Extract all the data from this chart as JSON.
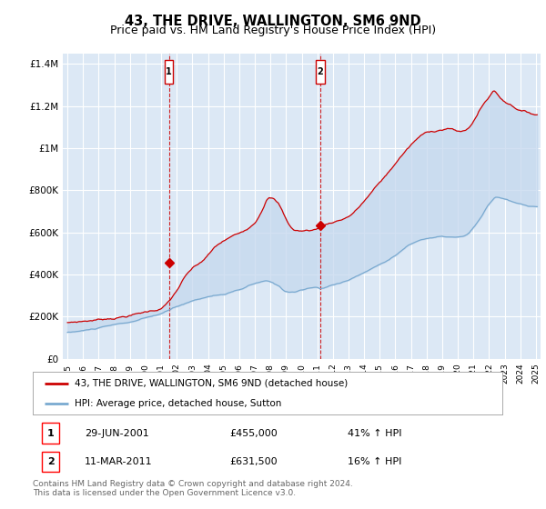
{
  "title": "43, THE DRIVE, WALLINGTON, SM6 9ND",
  "subtitle": "Price paid vs. HM Land Registry's House Price Index (HPI)",
  "title_fontsize": 10.5,
  "subtitle_fontsize": 9,
  "background_color": "#ffffff",
  "plot_bg_color": "#dce8f5",
  "ylim": [
    0,
    1450000
  ],
  "yticks": [
    0,
    200000,
    400000,
    600000,
    800000,
    1000000,
    1200000,
    1400000
  ],
  "ytick_labels": [
    "£0",
    "£200K",
    "£400K",
    "£600K",
    "£800K",
    "£1M",
    "£1.2M",
    "£1.4M"
  ],
  "xlim_start": 1994.7,
  "xlim_end": 2025.3,
  "grid_color": "#ffffff",
  "red_line_color": "#cc0000",
  "blue_line_color": "#7aaad0",
  "fill_color": "#c5d8ee",
  "vline_color": "#cc0000",
  "vline1_x": 2001.5,
  "vline2_x": 2011.2,
  "marker1_y": 455000,
  "marker2_y": 631500,
  "legend_label1": "43, THE DRIVE, WALLINGTON, SM6 9ND (detached house)",
  "legend_label2": "HPI: Average price, detached house, Sutton",
  "ann1_num": "1",
  "ann1_date": "29-JUN-2001",
  "ann1_price": "£455,000",
  "ann1_hpi": "41% ↑ HPI",
  "ann2_num": "2",
  "ann2_date": "11-MAR-2011",
  "ann2_price": "£631,500",
  "ann2_hpi": "16% ↑ HPI",
  "footer": "Contains HM Land Registry data © Crown copyright and database right 2024.\nThis data is licensed under the Open Government Licence v3.0.",
  "xtick_years": [
    1995,
    1996,
    1997,
    1998,
    1999,
    2000,
    2001,
    2002,
    2003,
    2004,
    2005,
    2006,
    2007,
    2008,
    2009,
    2010,
    2011,
    2012,
    2013,
    2014,
    2015,
    2016,
    2017,
    2018,
    2019,
    2020,
    2021,
    2022,
    2023,
    2024,
    2025
  ]
}
